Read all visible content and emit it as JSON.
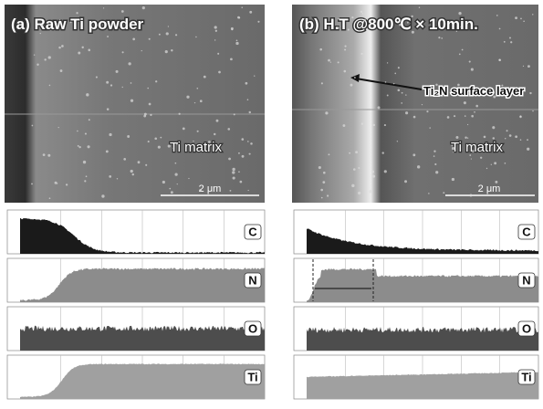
{
  "panels": [
    {
      "label": "(a) Raw Ti powder",
      "matrix_label": "Ti matrix",
      "scale_bar": "2 μm",
      "line_scans": [
        "C",
        "N",
        "O",
        "Ti"
      ]
    },
    {
      "label": "(b) H.T @800℃ × 10min.",
      "annotation": "Ti₂N surface layer",
      "matrix_label": "Ti matrix",
      "scale_bar": "2 μm",
      "line_scans": [
        "C",
        "N",
        "O",
        "Ti"
      ]
    }
  ]
}
